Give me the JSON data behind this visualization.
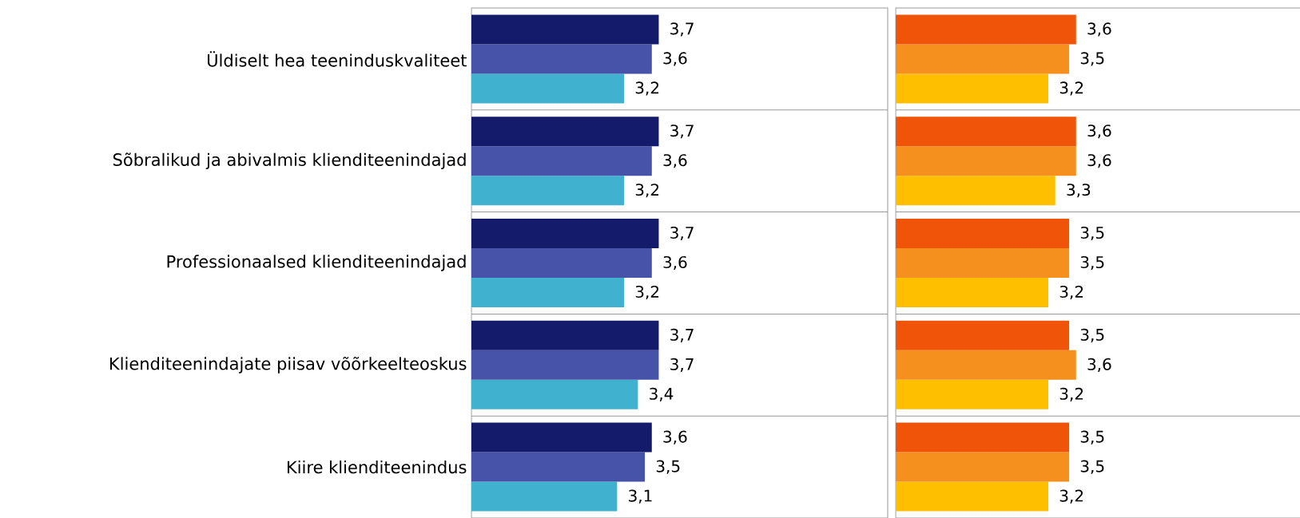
{
  "chart_data": [
    {
      "type": "bar",
      "orientation": "horizontal",
      "categories": [
        "Üldiselt hea teeninduskvaliteet",
        "Sõbralikud ja abivalmis klienditeenindajad",
        "Professionaalsed klienditeenindajad",
        "Klienditeenindajate piisav võõrkeelteoskus",
        "Kiire klienditeenindus"
      ],
      "series": [
        {
          "color": "#141b6b",
          "values": [
            3.7,
            3.7,
            3.7,
            3.7,
            3.6
          ],
          "value_labels": [
            "3,7",
            "3,7",
            "3,7",
            "3,7",
            "3,6"
          ]
        },
        {
          "color": "#4753a8",
          "values": [
            3.6,
            3.6,
            3.6,
            3.7,
            3.5
          ],
          "value_labels": [
            "3,6",
            "3,6",
            "3,6",
            "3,7",
            "3,5"
          ]
        },
        {
          "color": "#40b2cf",
          "values": [
            3.2,
            3.2,
            3.2,
            3.4,
            3.1
          ],
          "value_labels": [
            "3,2",
            "3,2",
            "3,2",
            "3,4",
            "3,1"
          ]
        }
      ],
      "xlim": [
        1,
        7
      ],
      "grid": "y",
      "tick_labels": "y"
    },
    {
      "type": "bar",
      "orientation": "horizontal",
      "categories": [
        null,
        null,
        null,
        null,
        null
      ],
      "series": [
        {
          "color": "#f05408",
          "values": [
            3.6,
            3.6,
            3.5,
            3.5,
            3.5
          ],
          "value_labels": [
            "3,6",
            "3,6",
            "3,5",
            "3,5",
            "3,5"
          ]
        },
        {
          "color": "#f5901e",
          "values": [
            3.5,
            3.6,
            3.5,
            3.6,
            3.5
          ],
          "value_labels": [
            "3,5",
            "3,6",
            "3,5",
            "3,6",
            "3,5"
          ]
        },
        {
          "color": "#fdbf00",
          "values": [
            3.2,
            3.3,
            3.2,
            3.2,
            3.2
          ],
          "value_labels": [
            "3,2",
            "3,3",
            "3,2",
            "3,2",
            "3,2"
          ]
        }
      ],
      "xlim": [
        1,
        7
      ],
      "grid": "y",
      "tick_labels": false
    }
  ]
}
